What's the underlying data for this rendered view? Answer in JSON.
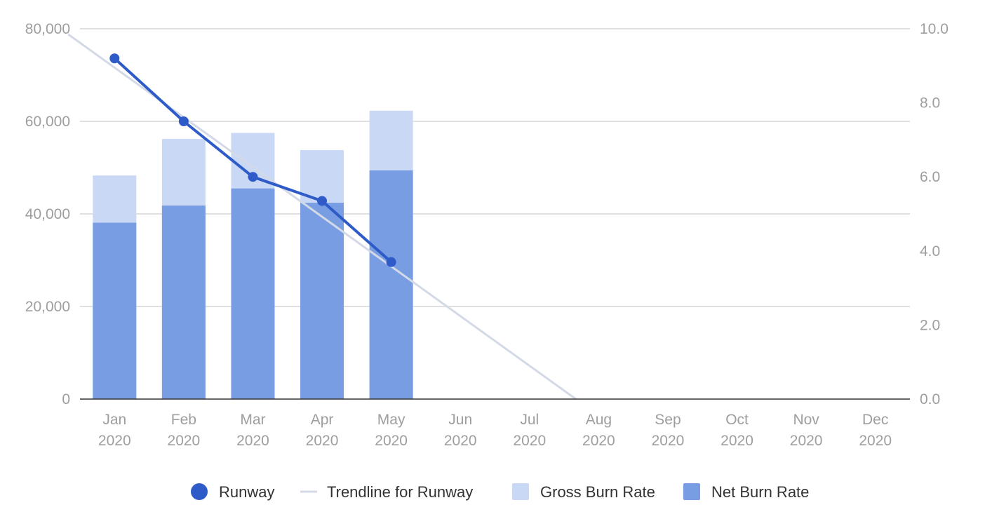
{
  "chart_data": {
    "type": "bar",
    "categories": [
      [
        "Jan",
        "2020"
      ],
      [
        "Feb",
        "2020"
      ],
      [
        "Mar",
        "2020"
      ],
      [
        "Apr",
        "2020"
      ],
      [
        "May",
        "2020"
      ],
      [
        "Jun",
        "2020"
      ],
      [
        "Jul",
        "2020"
      ],
      [
        "Aug",
        "2020"
      ],
      [
        "Sep",
        "2020"
      ],
      [
        "Oct",
        "2020"
      ],
      [
        "Nov",
        "2020"
      ],
      [
        "Dec",
        "2020"
      ]
    ],
    "y_left": {
      "min": 0,
      "max": 80000,
      "ticks": [
        "0",
        "20,000",
        "40,000",
        "60,000",
        "80,000"
      ],
      "tick_values": [
        0,
        20000,
        40000,
        60000,
        80000
      ]
    },
    "y_right": {
      "min": 0,
      "max": 10,
      "ticks": [
        "0.0",
        "2.0",
        "4.0",
        "6.0",
        "8.0",
        "10.0"
      ],
      "tick_values": [
        0,
        2,
        4,
        6,
        8,
        10
      ]
    },
    "grid": true,
    "series": [
      {
        "name": "Gross Burn Rate",
        "kind": "bar",
        "axis": "left",
        "color": "#c9d9f5",
        "values": [
          48300,
          56200,
          57500,
          53800,
          62300,
          null,
          null,
          null,
          null,
          null,
          null,
          null
        ]
      },
      {
        "name": "Net Burn Rate",
        "kind": "bar",
        "axis": "left",
        "color": "#789de2",
        "values": [
          38100,
          41800,
          45500,
          42400,
          49400,
          null,
          null,
          null,
          null,
          null,
          null,
          null
        ]
      },
      {
        "name": "Runway",
        "kind": "line",
        "axis": "right",
        "color": "#2f5bc9",
        "values": [
          9.2,
          7.5,
          6.0,
          5.35,
          3.7,
          null,
          null,
          null,
          null,
          null,
          null,
          null
        ]
      },
      {
        "name": "Trendline for Runway",
        "kind": "trendline",
        "axis": "right",
        "color": "#d3d9e6",
        "x_start": -0.67,
        "y_start": 9.85,
        "x_end": 6.67,
        "y_end": 0.0
      }
    ],
    "legend": {
      "position": "bottom",
      "items": [
        {
          "label": "Runway",
          "marker": "circle",
          "color": "#2f5bc9"
        },
        {
          "label": "Trendline for Runway",
          "marker": "line",
          "color": "#d3d9e6"
        },
        {
          "label": "Gross Burn Rate",
          "marker": "square",
          "color": "#c9d9f5"
        },
        {
          "label": "Net Burn Rate",
          "marker": "square",
          "color": "#789de2"
        }
      ]
    }
  }
}
